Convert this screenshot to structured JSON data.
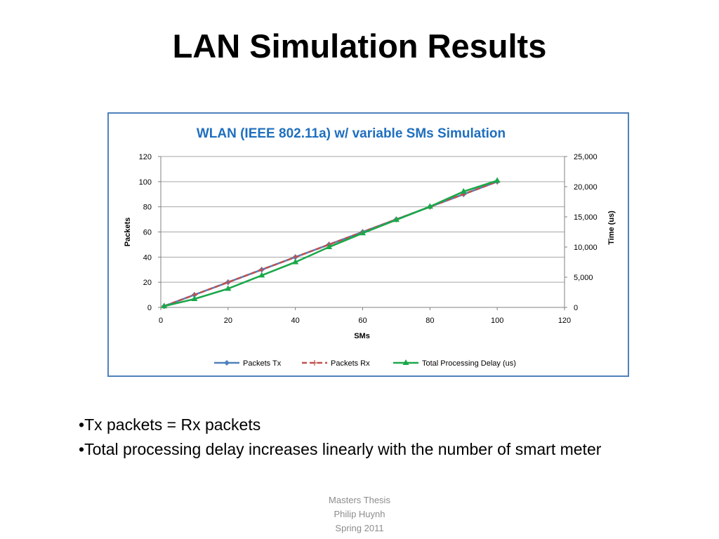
{
  "slide": {
    "title": "LAN Simulation Results",
    "bullets": [
      "Tx packets = Rx packets",
      "Total processing delay increases linearly with the number of smart meter"
    ],
    "bullet_marker": "•",
    "footer": [
      "Masters Thesis",
      "Philip Huynh",
      "Spring 2011"
    ]
  },
  "colors": {
    "frame": "#4f81bd",
    "title": "#1f6fbf",
    "packets_tx": "#4f81bd",
    "packets_rx": "#c0504d",
    "delay": "#1aa84a",
    "grid": "#a6a6a6"
  },
  "chart_data": {
    "type": "line",
    "title": "WLAN (IEEE 802.11a) w/ variable SMs Simulation",
    "xlabel": "SMs",
    "ylabel": "Packets",
    "y2label": "Time (us)",
    "xlim": [
      0,
      120
    ],
    "ylim": [
      0,
      120
    ],
    "y2lim": [
      0,
      25000
    ],
    "xticks": [
      "0",
      "20",
      "40",
      "60",
      "80",
      "100",
      "120"
    ],
    "yticks": [
      "0",
      "20",
      "40",
      "60",
      "80",
      "100",
      "120"
    ],
    "y2ticks": [
      "0",
      "5,000",
      "10,000",
      "15,000",
      "20,000",
      "25,000"
    ],
    "x": [
      1,
      10,
      20,
      30,
      40,
      50,
      60,
      70,
      80,
      90,
      100
    ],
    "grid": "horizontal",
    "legend_position": "bottom",
    "series": [
      {
        "name": "Packets Tx",
        "axis": "left",
        "marker": "diamond",
        "dash": "solid",
        "values": [
          1,
          10,
          20,
          30,
          40,
          50,
          60,
          70,
          80,
          90,
          100
        ]
      },
      {
        "name": "Packets Rx",
        "axis": "left",
        "marker": "plus",
        "dash": "dashed",
        "values": [
          1,
          10,
          20,
          30,
          40,
          50,
          60,
          70,
          80,
          90,
          100
        ]
      },
      {
        "name": "Total Processing Delay (us)",
        "axis": "right",
        "marker": "triangle",
        "dash": "solid",
        "values": [
          200,
          1400,
          3100,
          5300,
          7500,
          10000,
          12300,
          14500,
          16700,
          19200,
          21000
        ]
      }
    ]
  }
}
